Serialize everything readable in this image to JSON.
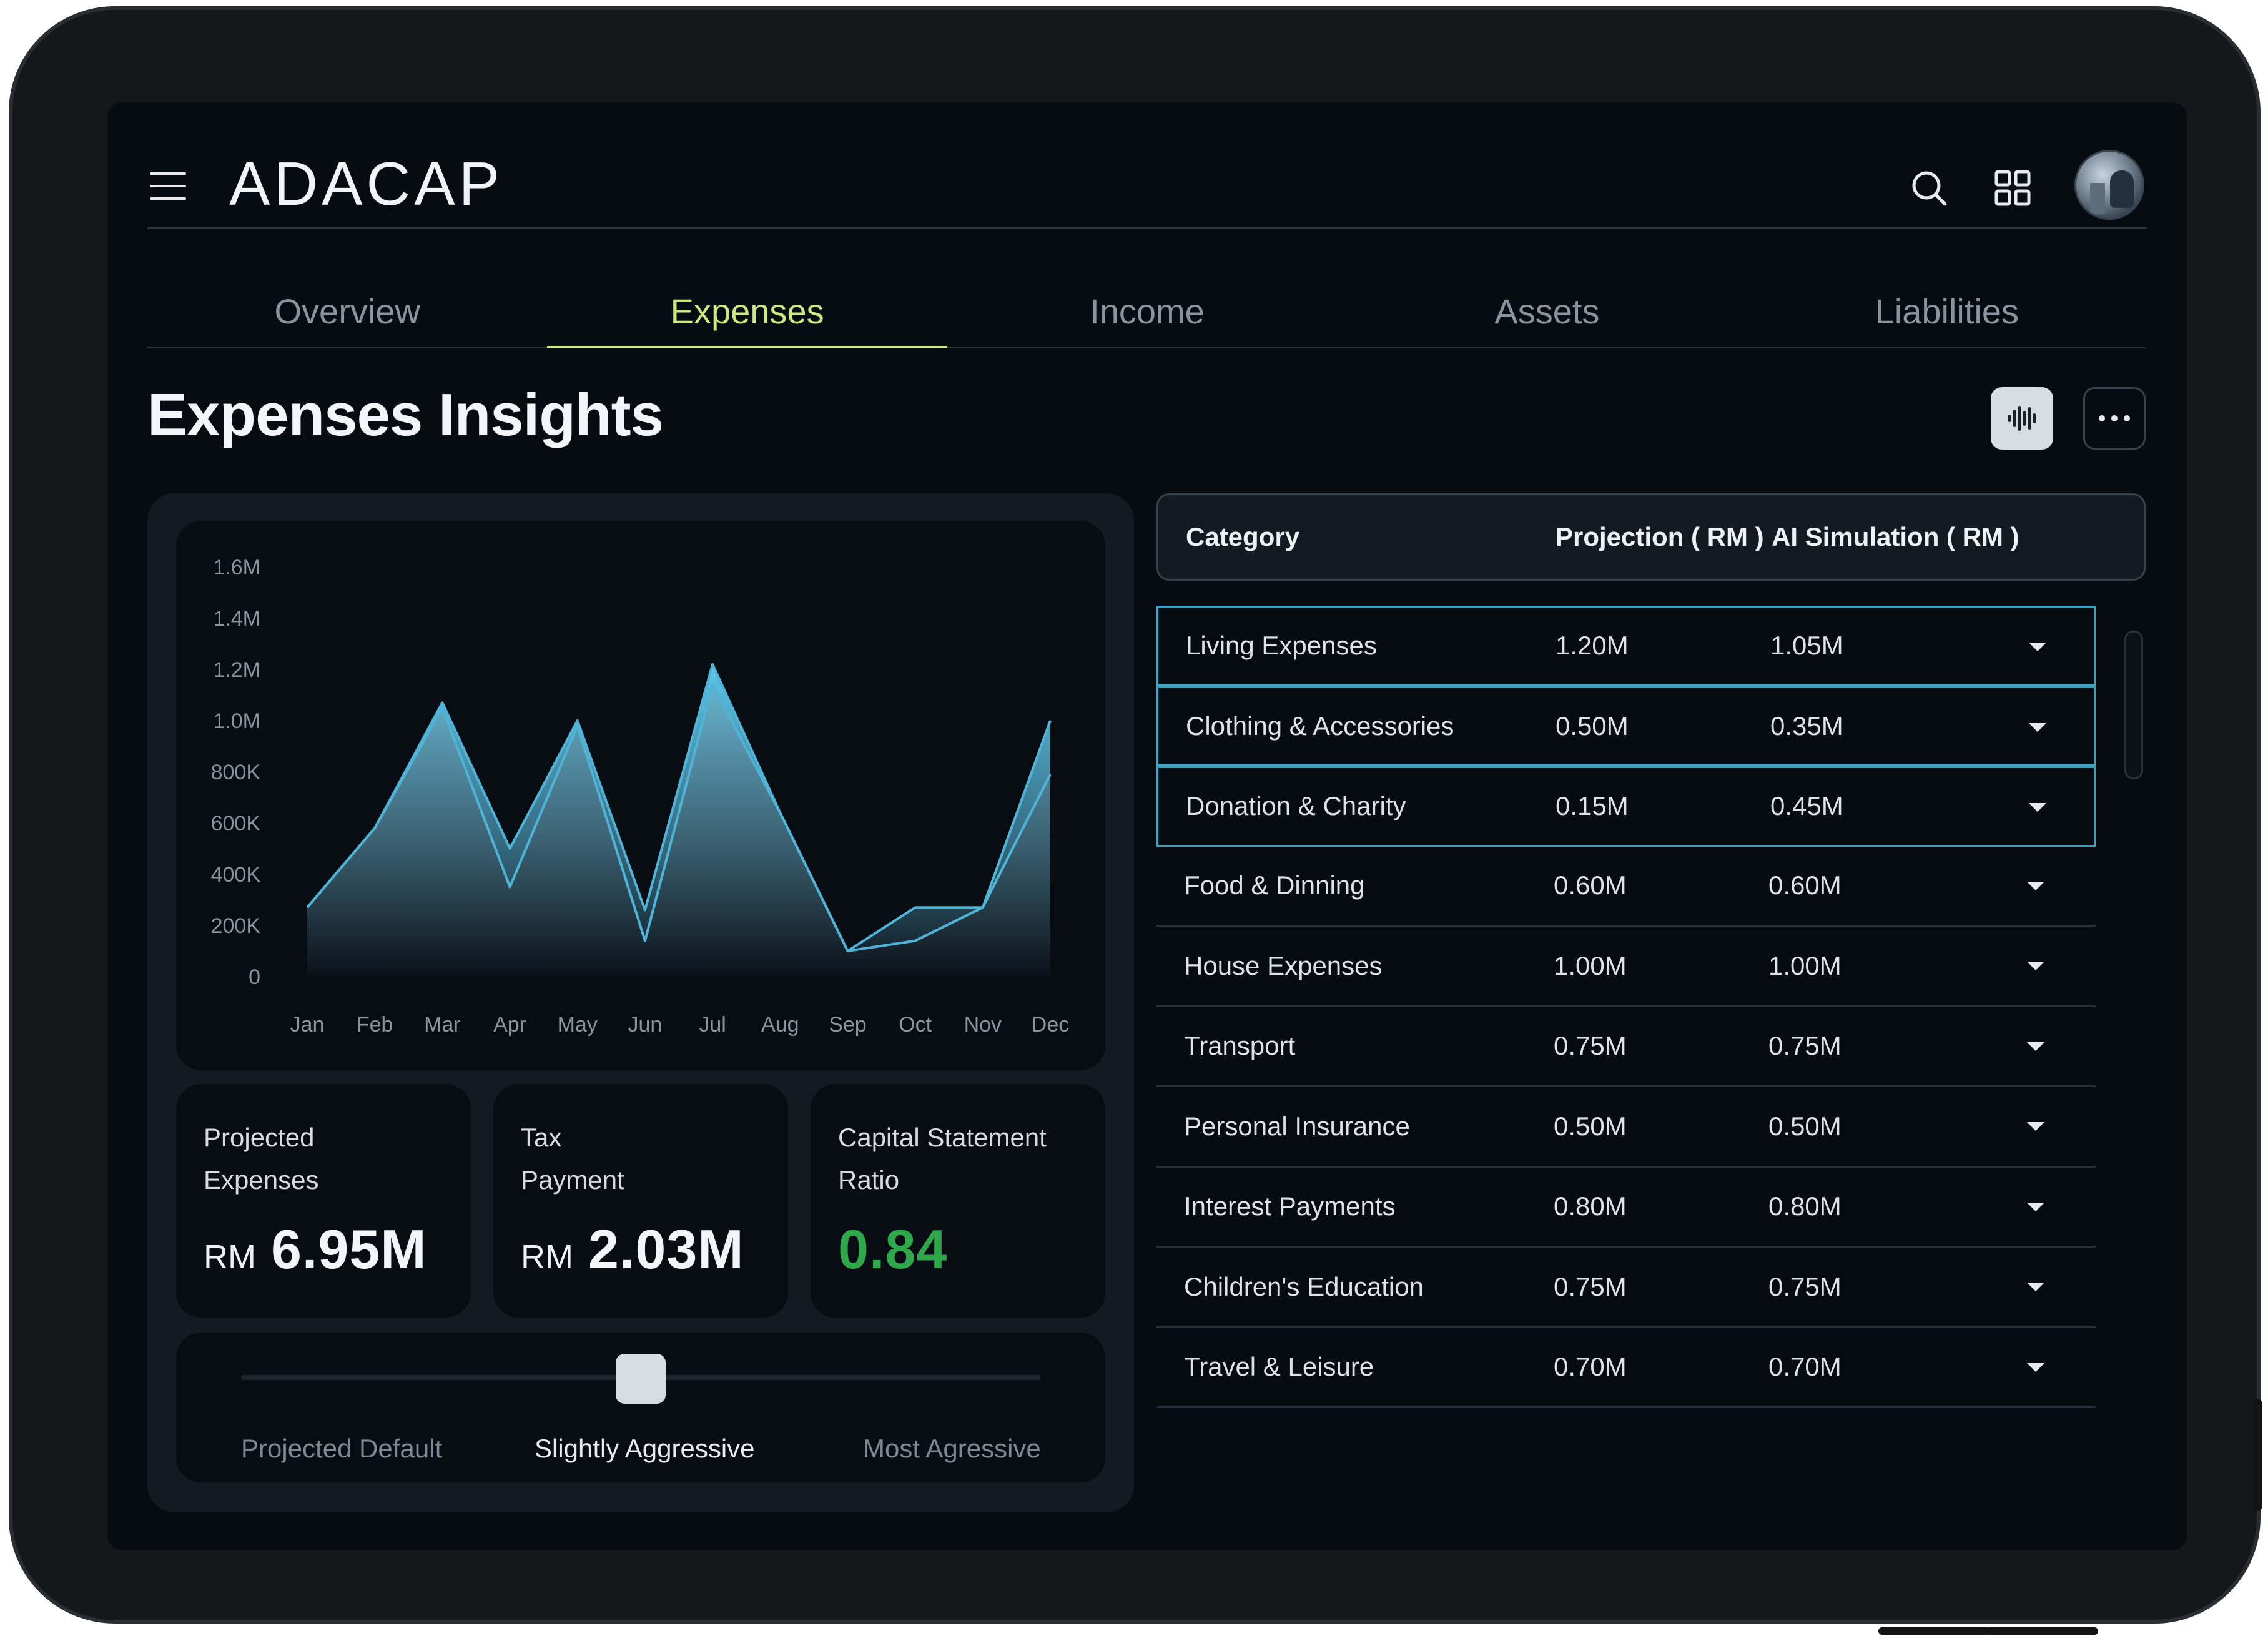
{
  "app": {
    "logo": "ADACAP"
  },
  "header": {
    "menu_icon": "hamburger-icon",
    "search_icon": "search-icon",
    "apps_icon": "grid-icon"
  },
  "tabs": [
    {
      "label": "Overview",
      "active": false
    },
    {
      "label": "Expenses",
      "active": true
    },
    {
      "label": "Income",
      "active": false
    },
    {
      "label": "Assets",
      "active": false
    },
    {
      "label": "Liabilities",
      "active": false
    }
  ],
  "page": {
    "title": "Expenses Insights"
  },
  "chart_data": {
    "type": "area",
    "title": "",
    "xlabel": "",
    "ylabel": "",
    "categories": [
      "Jan",
      "Feb",
      "Mar",
      "Apr",
      "May",
      "Jun",
      "Jul",
      "Aug",
      "Sep",
      "Oct",
      "Nov",
      "Dec"
    ],
    "y_ticks": [
      "1.6M",
      "1.4M",
      "1.2M",
      "1.0M",
      "800K",
      "600K",
      "400K",
      "200K",
      "0"
    ],
    "ylim": [
      0,
      1600000
    ],
    "grid": false,
    "series": [
      {
        "values": [
          270000,
          580000,
          1070000,
          500000,
          1000000,
          260000,
          1220000,
          640000,
          100000,
          270000,
          270000,
          1000000
        ]
      },
      {
        "values": [
          270000,
          580000,
          1050000,
          350000,
          980000,
          140000,
          1140000,
          640000,
          100000,
          140000,
          270000,
          790000
        ]
      }
    ],
    "colors": {
      "area_top": "#5ec8ec",
      "area_bottom": "#0b1017",
      "line": "#4fb4d6"
    }
  },
  "stats": [
    {
      "label_line1": "Projected",
      "label_line2": "Expenses",
      "currency": "RM",
      "value": "6.95M"
    },
    {
      "label_line1": "Tax",
      "label_line2": "Payment",
      "currency": "RM",
      "value": "2.03M"
    },
    {
      "label_line1": "Capital Statement",
      "label_line2": "Ratio",
      "value": "0.84",
      "value_color": "#2ea84b"
    }
  ],
  "slider": {
    "options": [
      "Projected Default",
      "Slightly Aggressive",
      "Most Agressive"
    ],
    "selected": "Slightly Aggressive",
    "level": 0.5
  },
  "table": {
    "headers": {
      "category": "Category",
      "projection": "Projection ( RM )",
      "ai": "AI Simulation ( RM )"
    },
    "rows": [
      {
        "category": "Living Expenses",
        "projection": "1.20M",
        "ai": "1.05M"
      },
      {
        "category": "Clothing & Accessories",
        "projection": "0.50M",
        "ai": "0.35M"
      },
      {
        "category": "Donation & Charity",
        "projection": "0.15M",
        "ai": "0.45M"
      },
      {
        "category": "Food & Dinning",
        "projection": "0.60M",
        "ai": "0.60M"
      },
      {
        "category": "House Expenses",
        "projection": "1.00M",
        "ai": "1.00M"
      },
      {
        "category": "Transport",
        "projection": "0.75M",
        "ai": "0.75M"
      },
      {
        "category": "Personal Insurance",
        "projection": "0.50M",
        "ai": "0.50M"
      },
      {
        "category": "Interest Payments",
        "projection": "0.80M",
        "ai": "0.80M"
      },
      {
        "category": "Children's Education",
        "projection": "0.75M",
        "ai": "0.75M"
      },
      {
        "category": "Travel & Leisure",
        "projection": "0.70M",
        "ai": "0.70M"
      }
    ],
    "highlight_color": "#3aa3c4"
  }
}
